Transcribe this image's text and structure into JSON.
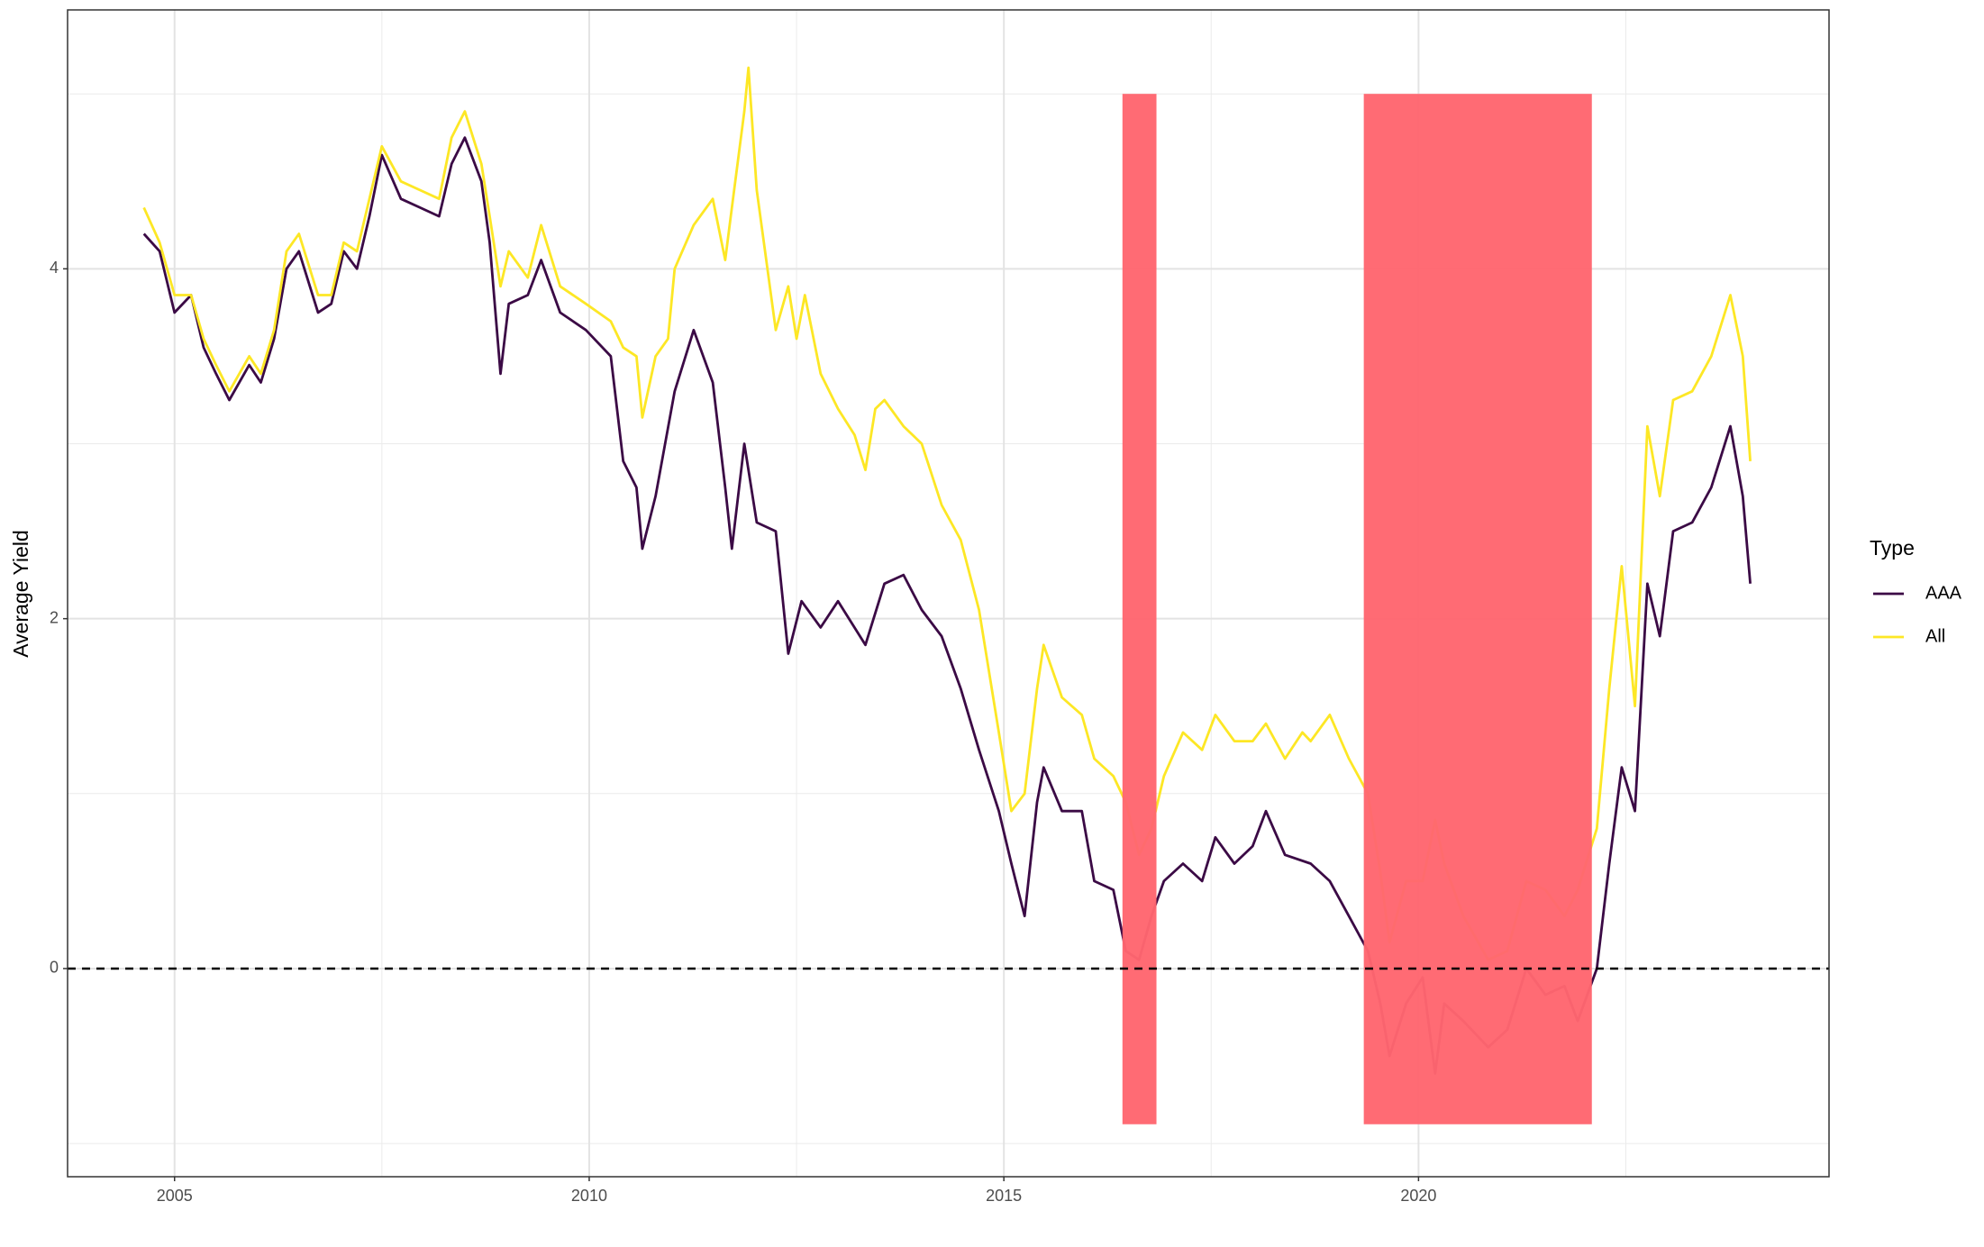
{
  "chart_data": {
    "type": "line",
    "y_label": "Average Yield",
    "legend_title": "Type",
    "xlim": [
      2003.71,
      2024.95
    ],
    "xticks": [
      2005,
      2010,
      2015,
      2020
    ],
    "ylim": [
      -1.19,
      5.48
    ],
    "yticks": [
      0,
      2,
      4
    ],
    "grid": true,
    "minor_grid": true,
    "hline": 0,
    "shaded_regions": [
      {
        "xmin": 2016.43,
        "xmax": 2016.84,
        "ymin": -0.89,
        "ymax": 5.0,
        "color": "#ff6670"
      },
      {
        "xmin": 2019.34,
        "xmax": 2022.09,
        "ymin": -0.89,
        "ymax": 5.0,
        "color": "#ff6670"
      }
    ],
    "series": [
      {
        "name": "AAA",
        "color": "#3b0a45",
        "x": [
          2004.63,
          2004.82,
          2005.0,
          2005.2,
          2005.35,
          2005.5,
          2005.66,
          2005.9,
          2006.04,
          2006.2,
          2006.35,
          2006.5,
          2006.73,
          2006.89,
          2007.04,
          2007.2,
          2007.35,
          2007.5,
          2007.73,
          2007.96,
          2008.19,
          2008.34,
          2008.5,
          2008.7,
          2008.8,
          2008.93,
          2009.03,
          2009.26,
          2009.42,
          2009.65,
          2009.96,
          2010.26,
          2010.41,
          2010.57,
          2010.64,
          2010.8,
          2011.03,
          2011.26,
          2011.49,
          2011.64,
          2011.72,
          2011.87,
          2012.02,
          2012.25,
          2012.4,
          2012.56,
          2012.79,
          2013.0,
          2013.33,
          2013.56,
          2013.79,
          2014.01,
          2014.25,
          2014.48,
          2014.7,
          2014.94,
          2015.09,
          2015.25,
          2015.4,
          2015.48,
          2015.7,
          2015.94,
          2016.09,
          2016.32,
          2016.47,
          2016.63,
          2016.78,
          2016.93,
          2017.16,
          2017.39,
          2017.55,
          2017.78,
          2018.0,
          2018.16,
          2018.39,
          2018.7,
          2018.93,
          2019.16,
          2019.39,
          2019.54,
          2019.65,
          2019.85,
          2020.05,
          2020.2,
          2020.31,
          2020.54,
          2020.84,
          2021.07,
          2021.3,
          2021.53,
          2021.76,
          2021.92,
          2022.15,
          2022.3,
          2022.45,
          2022.61,
          2022.76,
          2022.91,
          2023.07,
          2023.3,
          2023.53,
          2023.76,
          2023.91,
          2024.0
        ],
        "values": [
          4.2,
          4.1,
          3.75,
          3.85,
          3.55,
          3.4,
          3.25,
          3.45,
          3.35,
          3.6,
          4.0,
          4.1,
          3.75,
          3.8,
          4.1,
          4.0,
          4.3,
          4.65,
          4.4,
          4.35,
          4.3,
          4.6,
          4.75,
          4.5,
          4.15,
          3.4,
          3.8,
          3.85,
          4.05,
          3.75,
          3.65,
          3.5,
          2.9,
          2.75,
          2.4,
          2.7,
          3.3,
          3.65,
          3.35,
          2.75,
          2.4,
          3.0,
          2.55,
          2.5,
          1.8,
          2.1,
          1.95,
          2.1,
          1.85,
          2.2,
          2.25,
          2.05,
          1.9,
          1.6,
          1.25,
          0.9,
          0.6,
          0.3,
          0.95,
          1.15,
          0.9,
          0.9,
          0.5,
          0.45,
          0.1,
          0.05,
          0.3,
          0.5,
          0.6,
          0.5,
          0.75,
          0.6,
          0.7,
          0.9,
          0.65,
          0.6,
          0.5,
          0.3,
          0.1,
          -0.2,
          -0.5,
          -0.2,
          -0.05,
          -0.6,
          -0.2,
          -0.3,
          -0.45,
          -0.35,
          0.0,
          -0.15,
          -0.1,
          -0.3,
          0.0,
          0.6,
          1.15,
          0.9,
          2.2,
          1.9,
          2.5,
          2.55,
          2.75,
          3.1,
          2.7,
          2.2
        ]
      },
      {
        "name": "All",
        "color": "#fde725",
        "x": [
          2004.63,
          2004.82,
          2005.0,
          2005.2,
          2005.35,
          2005.5,
          2005.66,
          2005.9,
          2006.04,
          2006.2,
          2006.35,
          2006.5,
          2006.73,
          2006.89,
          2007.04,
          2007.2,
          2007.35,
          2007.5,
          2007.73,
          2007.96,
          2008.19,
          2008.34,
          2008.5,
          2008.7,
          2008.8,
          2008.93,
          2009.03,
          2009.26,
          2009.42,
          2009.65,
          2009.96,
          2010.26,
          2010.41,
          2010.57,
          2010.64,
          2010.8,
          2010.95,
          2011.03,
          2011.26,
          2011.49,
          2011.64,
          2011.72,
          2011.87,
          2011.92,
          2012.02,
          2012.25,
          2012.4,
          2012.5,
          2012.6,
          2012.79,
          2013.0,
          2013.2,
          2013.33,
          2013.45,
          2013.56,
          2013.79,
          2014.01,
          2014.25,
          2014.48,
          2014.7,
          2014.94,
          2015.09,
          2015.25,
          2015.4,
          2015.48,
          2015.7,
          2015.94,
          2016.09,
          2016.32,
          2016.47,
          2016.63,
          2016.78,
          2016.93,
          2017.16,
          2017.39,
          2017.55,
          2017.78,
          2018.0,
          2018.16,
          2018.39,
          2018.6,
          2018.7,
          2018.93,
          2019.16,
          2019.39,
          2019.54,
          2019.65,
          2019.85,
          2020.05,
          2020.2,
          2020.31,
          2020.54,
          2020.84,
          2021.07,
          2021.3,
          2021.53,
          2021.76,
          2021.92,
          2022.15,
          2022.3,
          2022.45,
          2022.61,
          2022.76,
          2022.91,
          2023.07,
          2023.3,
          2023.53,
          2023.76,
          2023.91,
          2024.0
        ],
        "values": [
          4.35,
          4.15,
          3.85,
          3.85,
          3.6,
          3.45,
          3.3,
          3.5,
          3.4,
          3.65,
          4.1,
          4.2,
          3.85,
          3.85,
          4.15,
          4.1,
          4.4,
          4.7,
          4.5,
          4.45,
          4.4,
          4.75,
          4.9,
          4.6,
          4.3,
          3.9,
          4.1,
          3.95,
          4.25,
          3.9,
          3.8,
          3.7,
          3.55,
          3.5,
          3.15,
          3.5,
          3.6,
          4.0,
          4.25,
          4.4,
          4.05,
          4.35,
          4.9,
          5.15,
          4.45,
          3.65,
          3.9,
          3.6,
          3.85,
          3.4,
          3.2,
          3.05,
          2.85,
          3.2,
          3.25,
          3.1,
          3.0,
          2.65,
          2.45,
          2.05,
          1.35,
          0.9,
          1.0,
          1.6,
          1.85,
          1.55,
          1.45,
          1.2,
          1.1,
          0.95,
          0.65,
          0.8,
          1.1,
          1.35,
          1.25,
          1.45,
          1.3,
          1.3,
          1.4,
          1.2,
          1.35,
          1.3,
          1.45,
          1.2,
          1.0,
          0.55,
          0.15,
          0.5,
          0.5,
          0.85,
          0.6,
          0.3,
          0.05,
          0.1,
          0.5,
          0.45,
          0.3,
          0.45,
          0.8,
          1.6,
          2.3,
          1.5,
          3.1,
          2.7,
          3.25,
          3.3,
          3.5,
          3.85,
          3.5,
          2.9
        ]
      }
    ]
  }
}
